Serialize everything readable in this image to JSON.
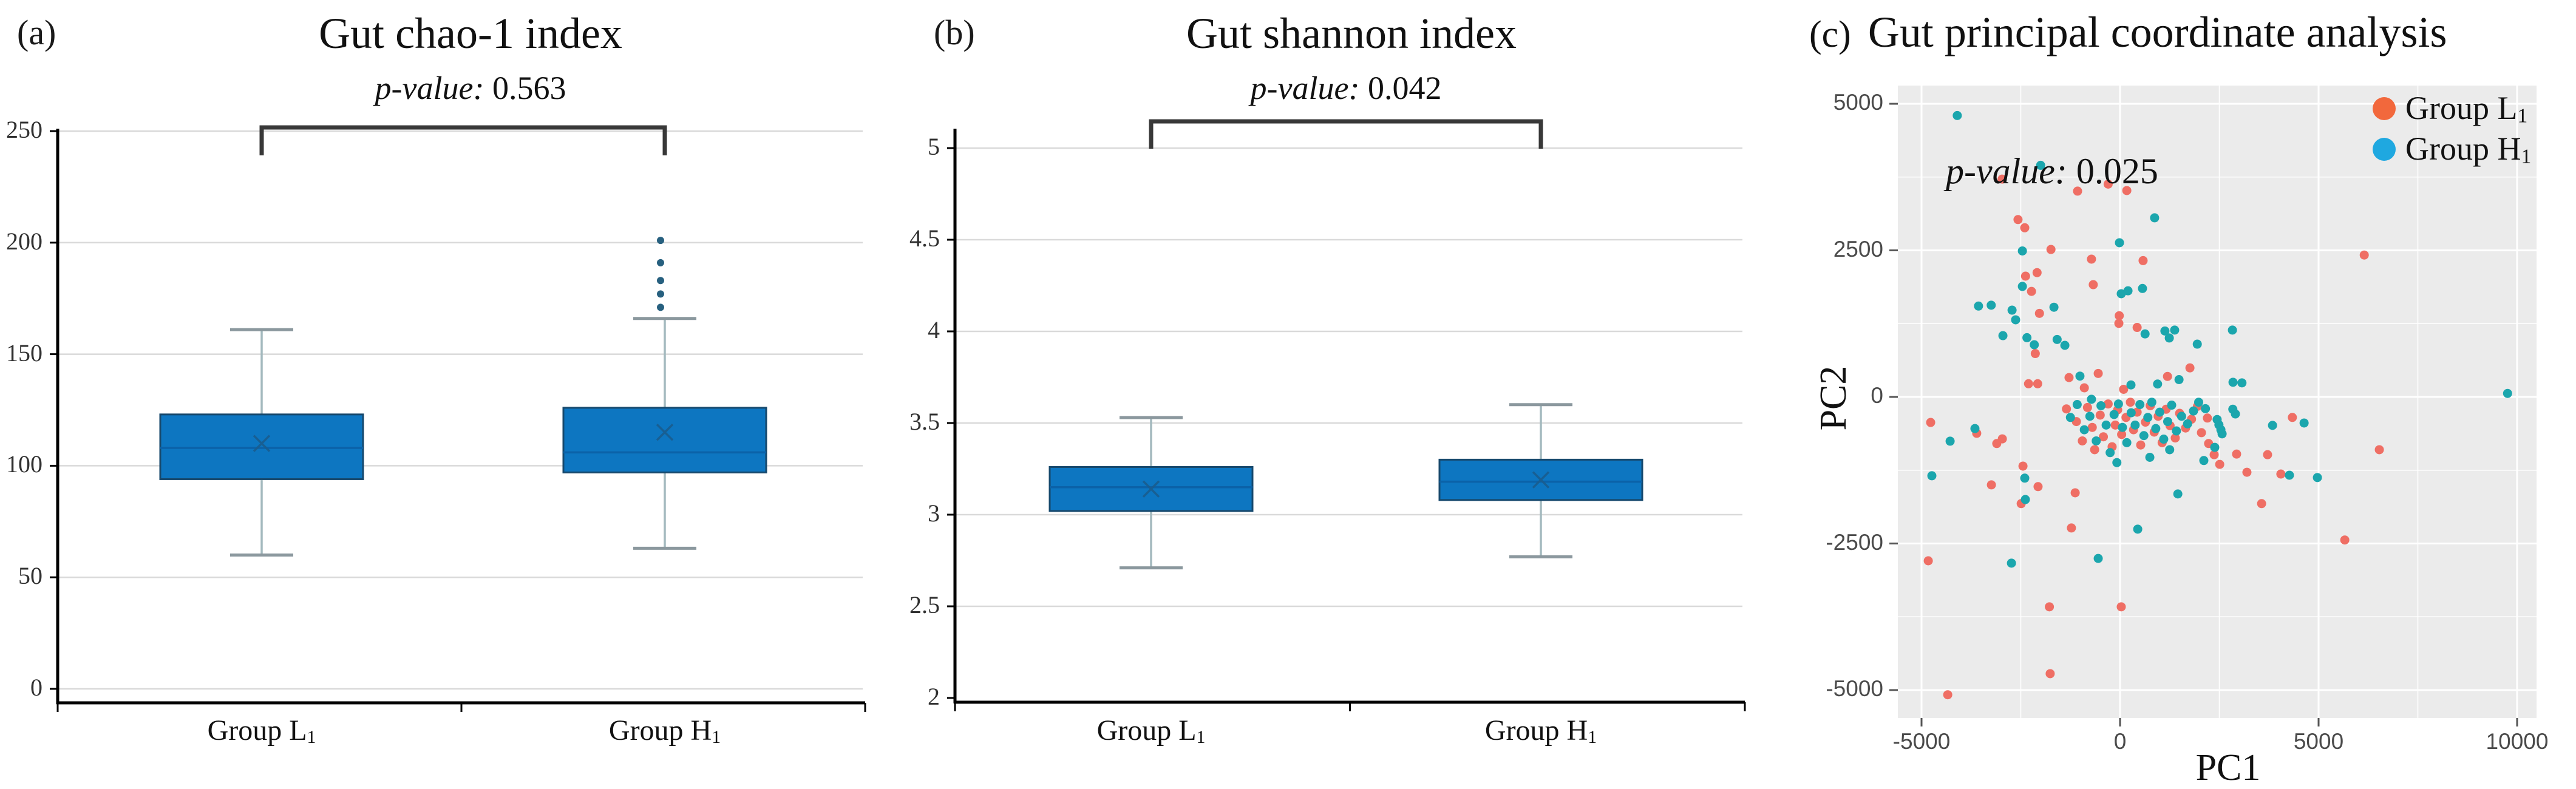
{
  "figure": {
    "background": "#ffffff",
    "panel_letters": [
      "(a)",
      "(b)",
      "(c)"
    ]
  },
  "colors": {
    "box_fill": "#0d76c1",
    "box_border": "#17496d",
    "median_line": "#0b62a8",
    "mean_marker": "#1a5d8f",
    "whisker_stem": "#a3b9be",
    "whisker_cap": "#8b989e",
    "outlier_dot": "#27607f",
    "gridline_ab": "#d9d9d9",
    "axis_line": "#000000",
    "bracket": "#383838",
    "panel_c_bg": "#ebebeb",
    "panel_c_grid": "#ffffff",
    "group_L_point": "#ef6e64",
    "group_H_point": "#1ba6ad",
    "legend_L_dot": "#f2683c",
    "legend_H_dot": "#1fa8e0"
  },
  "chart_data": [
    {
      "type": "boxplot",
      "title": "Gut chao-1 index",
      "p_label": "p-value:",
      "p_value": "0.563",
      "categories": [
        {
          "text": "Group L",
          "sub": "1"
        },
        {
          "text": "Group H",
          "sub": "1"
        }
      ],
      "ylim": [
        0,
        250
      ],
      "yticks": [
        0,
        50,
        100,
        150,
        200,
        250
      ],
      "series": [
        {
          "name": "Group L1",
          "whisker_low": 60,
          "q1": 94,
          "median": 108,
          "q3": 123,
          "whisker_high": 161,
          "mean": 110,
          "outliers": []
        },
        {
          "name": "Group H1",
          "whisker_low": 63,
          "q1": 97,
          "median": 106,
          "q3": 126,
          "whisker_high": 166,
          "mean": 115,
          "outliers": [
            171,
            177,
            183,
            191,
            201
          ]
        }
      ]
    },
    {
      "type": "boxplot",
      "title": "Gut shannon index",
      "p_label": "p-value:",
      "p_value": "0.042",
      "categories": [
        {
          "text": "Group L",
          "sub": "1"
        },
        {
          "text": "Group H",
          "sub": "1"
        }
      ],
      "ylim": [
        2,
        5
      ],
      "yticks": [
        2,
        2.5,
        3,
        3.5,
        4,
        4.5,
        5
      ],
      "series": [
        {
          "name": "Group L1",
          "whisker_low": 2.71,
          "q1": 3.02,
          "median": 3.15,
          "q3": 3.26,
          "whisker_high": 3.53,
          "mean": 3.14,
          "outliers": []
        },
        {
          "name": "Group H1",
          "whisker_low": 2.77,
          "q1": 3.08,
          "median": 3.18,
          "q3": 3.3,
          "whisker_high": 3.6,
          "mean": 3.19,
          "outliers": []
        }
      ]
    },
    {
      "type": "scatter",
      "title": "Gut principal coordinate analysis",
      "p_label": "p-value:",
      "p_value": "0.025",
      "xlabel": "PC1",
      "ylabel": "PC2",
      "xticks": [
        -5000,
        0,
        5000,
        10000
      ],
      "yticks": [
        5000,
        2500,
        0,
        -2500,
        -5000
      ],
      "xticks_minor": [
        -2500,
        2500,
        7500
      ],
      "yticks_minor": [
        3750,
        1250,
        -1250,
        -3750
      ],
      "xlim": [
        -5600,
        10500
      ],
      "ylim": [
        -5470,
        5310
      ],
      "legend": [
        {
          "text": "Group L",
          "sub": "1",
          "color": "#f2683c"
        },
        {
          "text": "Group H",
          "sub": "1",
          "color": "#1fa8e0"
        }
      ],
      "series": [
        {
          "name": "Group L1",
          "color": "#ef6e64",
          "points": [
            [
              -2970,
              3715
            ],
            [
              -1070,
              3510
            ],
            [
              -300,
              3630
            ],
            [
              170,
              3520
            ],
            [
              -2570,
              3025
            ],
            [
              -2400,
              2885
            ],
            [
              -1740,
              2515
            ],
            [
              -720,
              2350
            ],
            [
              580,
              2325
            ],
            [
              -2380,
              2060
            ],
            [
              -2090,
              2120
            ],
            [
              -2230,
              1800
            ],
            [
              -675,
              1915
            ],
            [
              -2030,
              1425
            ],
            [
              -20,
              1385
            ],
            [
              -2135,
              740
            ],
            [
              -2075,
              225
            ],
            [
              -2305,
              225
            ],
            [
              -1285,
              330
            ],
            [
              -900,
              155
            ],
            [
              -550,
              400
            ],
            [
              -30,
              1255
            ],
            [
              430,
              1185
            ],
            [
              1760,
              495
            ],
            [
              1195,
              350
            ],
            [
              90,
              130
            ],
            [
              765,
              -145
            ],
            [
              6150,
              2420
            ],
            [
              -4770,
              -435
            ],
            [
              -3610,
              -620
            ],
            [
              -3105,
              -795
            ],
            [
              -2965,
              -715
            ],
            [
              -3240,
              -1500
            ],
            [
              -4830,
              -2795
            ],
            [
              -4340,
              -5080
            ],
            [
              -1780,
              -3580
            ],
            [
              30,
              -3580
            ],
            [
              -1760,
              -4720
            ],
            [
              -1225,
              -2235
            ],
            [
              -1130,
              -1635
            ],
            [
              -2490,
              -1820
            ],
            [
              -2065,
              -1530
            ],
            [
              -2445,
              -1180
            ],
            [
              2200,
              -360
            ],
            [
              2230,
              -795
            ],
            [
              2370,
              -985
            ],
            [
              2510,
              -1150
            ],
            [
              2935,
              -975
            ],
            [
              3195,
              -1285
            ],
            [
              3715,
              -985
            ],
            [
              4050,
              -1315
            ],
            [
              4340,
              -350
            ],
            [
              6530,
              -900
            ],
            [
              3565,
              -1820
            ],
            [
              5660,
              -2440
            ],
            [
              -1350,
              -205
            ],
            [
              -1100,
              -420
            ],
            [
              -950,
              -750
            ],
            [
              -820,
              -180
            ],
            [
              -700,
              -520
            ],
            [
              -640,
              -900
            ],
            [
              -500,
              -310
            ],
            [
              -420,
              -680
            ],
            [
              -300,
              -120
            ],
            [
              -200,
              -850
            ],
            [
              -120,
              -480
            ],
            [
              -60,
              -220
            ],
            [
              40,
              -640
            ],
            [
              150,
              -350
            ],
            [
              260,
              -90
            ],
            [
              340,
              -560
            ],
            [
              430,
              -260
            ],
            [
              520,
              -820
            ],
            [
              640,
              -430
            ],
            [
              760,
              -150
            ],
            [
              860,
              -600
            ],
            [
              960,
              -330
            ],
            [
              1060,
              -780
            ],
            [
              1160,
              -210
            ],
            [
              1260,
              -490
            ],
            [
              1390,
              -700
            ],
            [
              1500,
              -280
            ],
            [
              1650,
              -530
            ],
            [
              1800,
              -380
            ],
            [
              1950,
              -160
            ],
            [
              2050,
              -610
            ]
          ]
        },
        {
          "name": "Group H1",
          "color": "#1ba6ad",
          "points": [
            [
              -4100,
              4800
            ],
            [
              -2000,
              3950
            ],
            [
              870,
              3055
            ],
            [
              -2460,
              2490
            ],
            [
              -15,
              2630
            ],
            [
              -2460,
              1885
            ],
            [
              30,
              1760
            ],
            [
              200,
              1810
            ],
            [
              565,
              1850
            ],
            [
              -3565,
              1550
            ],
            [
              -3245,
              1565
            ],
            [
              -2720,
              1480
            ],
            [
              -2630,
              1315
            ],
            [
              -1665,
              1530
            ],
            [
              -2950,
              1045
            ],
            [
              -2345,
              1010
            ],
            [
              -2160,
              890
            ],
            [
              -1585,
              980
            ],
            [
              -1390,
              880
            ],
            [
              -1010,
              355
            ],
            [
              630,
              1075
            ],
            [
              1130,
              1125
            ],
            [
              1375,
              1140
            ],
            [
              1240,
              1005
            ],
            [
              1945,
              900
            ],
            [
              1485,
              295
            ],
            [
              945,
              220
            ],
            [
              275,
              205
            ],
            [
              -720,
              -40
            ],
            [
              2830,
              1140
            ],
            [
              3070,
              240
            ],
            [
              2840,
              -210
            ],
            [
              9760,
              60
            ],
            [
              -4280,
              -755
            ],
            [
              -3655,
              -540
            ],
            [
              -4740,
              -1345
            ],
            [
              -2735,
              -2835
            ],
            [
              -550,
              -2755
            ],
            [
              445,
              -2255
            ],
            [
              1455,
              -1655
            ],
            [
              -2385,
              -1750
            ],
            [
              -2400,
              -1385
            ],
            [
              2845,
              250
            ],
            [
              2445,
              -385
            ],
            [
              2490,
              -475
            ],
            [
              2540,
              -560
            ],
            [
              2570,
              -630
            ],
            [
              2905,
              -290
            ],
            [
              2385,
              -860
            ],
            [
              2110,
              -1085
            ],
            [
              4265,
              -1335
            ],
            [
              4970,
              -1375
            ],
            [
              3840,
              -485
            ],
            [
              4635,
              -445
            ],
            [
              -1250,
              -350
            ],
            [
              -1080,
              -130
            ],
            [
              -900,
              -560
            ],
            [
              -760,
              -330
            ],
            [
              -600,
              -750
            ],
            [
              -480,
              -150
            ],
            [
              -350,
              -480
            ],
            [
              -250,
              -950
            ],
            [
              -150,
              -300
            ],
            [
              -40,
              -120
            ],
            [
              60,
              -520
            ],
            [
              170,
              -780
            ],
            [
              280,
              -270
            ],
            [
              380,
              -480
            ],
            [
              500,
              -130
            ],
            [
              600,
              -660
            ],
            [
              700,
              -350
            ],
            [
              800,
              -90
            ],
            [
              900,
              -540
            ],
            [
              1000,
              -260
            ],
            [
              1100,
              -720
            ],
            [
              1200,
              -420
            ],
            [
              1300,
              -140
            ],
            [
              1420,
              -580
            ],
            [
              1550,
              -330
            ],
            [
              1700,
              -460
            ],
            [
              1850,
              -240
            ],
            [
              1980,
              -90
            ],
            [
              2150,
              -200
            ],
            [
              750,
              -1030
            ],
            [
              1250,
              -900
            ],
            [
              -80,
              -1120
            ]
          ]
        }
      ]
    }
  ]
}
